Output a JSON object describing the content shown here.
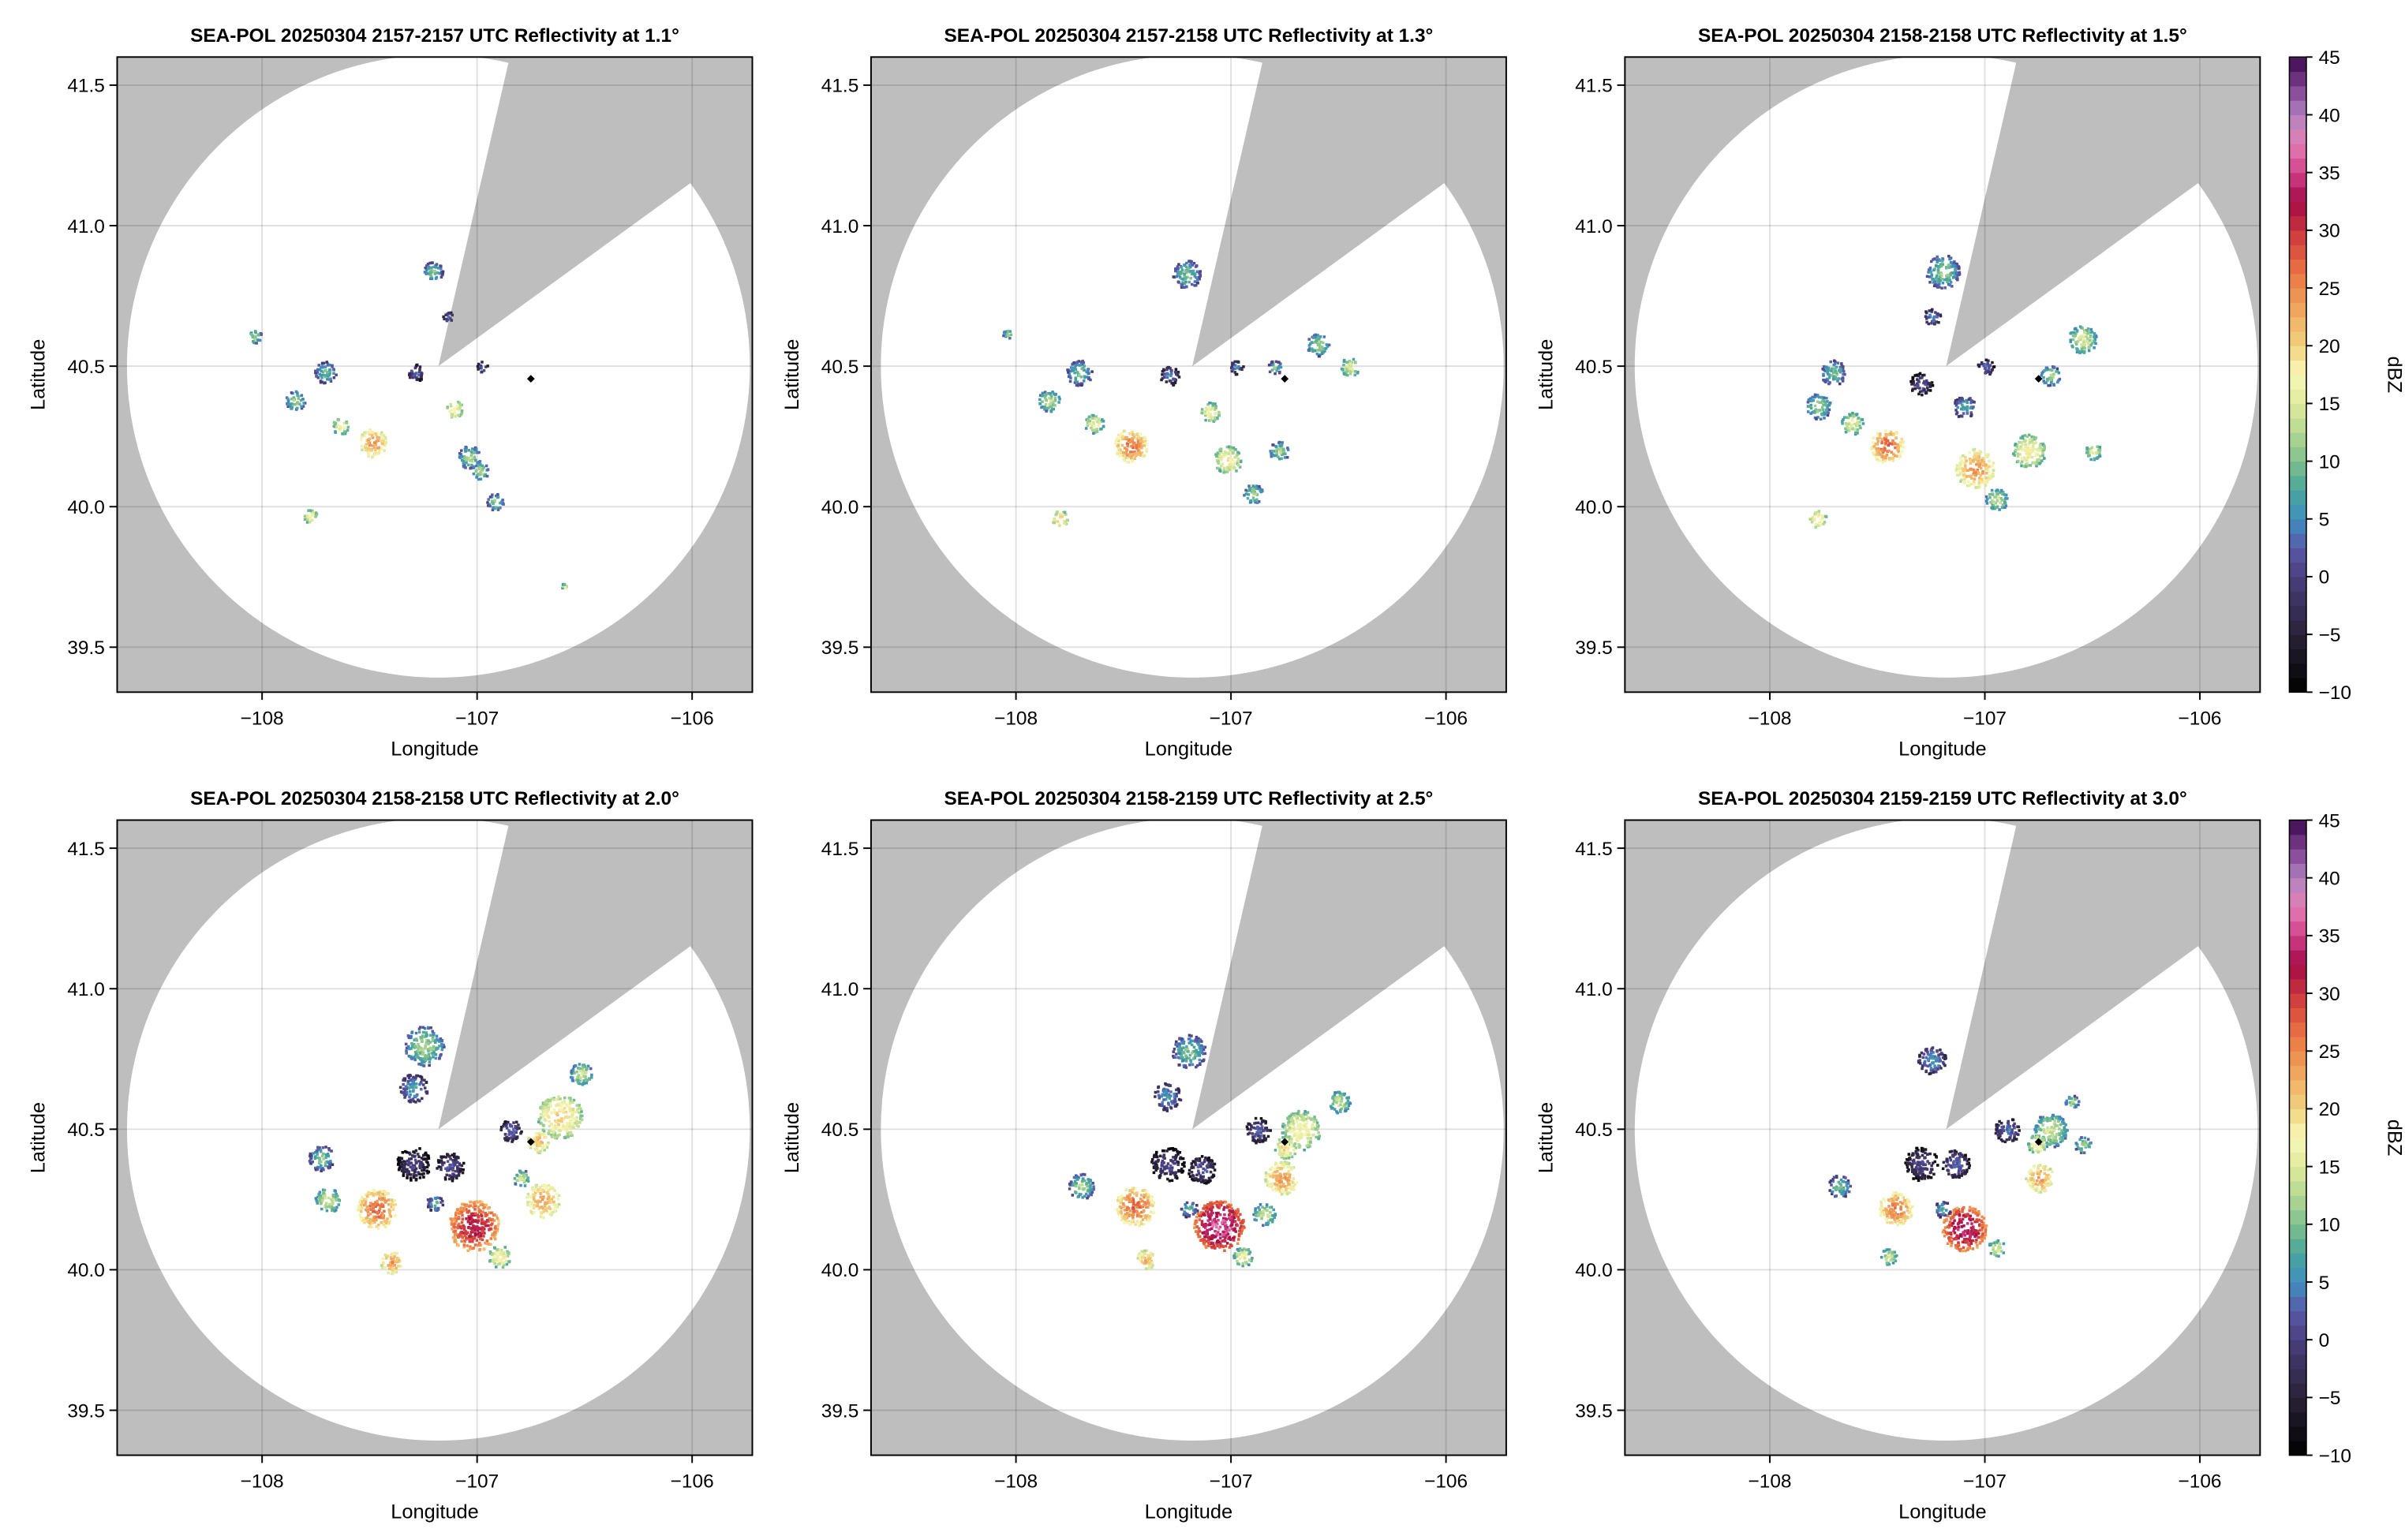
{
  "chart_data": {
    "type": "heatmap",
    "xlabel": "Longitude",
    "ylabel": "Latitude",
    "xlim": [
      -108.674,
      -105.72
    ],
    "ylim": [
      39.34,
      41.6
    ],
    "xticks": [
      -108,
      -107,
      -106
    ],
    "xtick_labels": [
      "−108",
      "−107",
      "−106"
    ],
    "yticks": [
      39.5,
      40.0,
      40.5,
      41.0,
      41.5
    ],
    "ytick_labels": [
      "39.5",
      "40.0",
      "40.5",
      "41.0",
      "41.5"
    ],
    "grid": true,
    "radar": {
      "lon": -107.18,
      "lat": 40.5,
      "range_km": 123,
      "blocked_sector_azimuth_deg": [
        13,
        54
      ],
      "outside_range_color": "#bebebe"
    },
    "marker": {
      "lon": -106.75,
      "lat": 40.455,
      "shape": "diamond",
      "color": "#000000"
    },
    "colorbar": {
      "label": "dBZ",
      "range": [
        -10,
        45
      ],
      "ticks": [
        -10,
        -5,
        0,
        5,
        10,
        15,
        20,
        25,
        30,
        35,
        40,
        45
      ],
      "tick_labels": [
        "−10",
        "−5",
        "0",
        "5",
        "10",
        "15",
        "20",
        "25",
        "30",
        "35",
        "40",
        "45"
      ],
      "colormap_stops": [
        [
          -10,
          "#000000"
        ],
        [
          -5,
          "#2a2238"
        ],
        [
          0,
          "#4a3f7e"
        ],
        [
          2.5,
          "#5a5aa8"
        ],
        [
          5,
          "#3f8fc0"
        ],
        [
          7.5,
          "#4aa59b"
        ],
        [
          10,
          "#7fc08d"
        ],
        [
          12.5,
          "#b5d892"
        ],
        [
          15,
          "#e0ea9d"
        ],
        [
          17.5,
          "#f8f8b8"
        ],
        [
          20,
          "#f2d37f"
        ],
        [
          22.5,
          "#efb066"
        ],
        [
          25,
          "#ee8b4c"
        ],
        [
          27.5,
          "#e2603f"
        ],
        [
          30,
          "#c9353f"
        ],
        [
          32.5,
          "#a30a47"
        ],
        [
          35,
          "#d0418b"
        ],
        [
          37.5,
          "#e37eb4"
        ],
        [
          40,
          "#b183c0"
        ],
        [
          42.5,
          "#7d3f8e"
        ],
        [
          45,
          "#3d0a4f"
        ]
      ],
      "shown_on_panels": [
        2,
        5
      ]
    },
    "panels": [
      {
        "title": "SEA-POL 20250304 2157-2157 UTC Reflectivity at 1.1°",
        "cells": [
          [
            -108.04,
            40.61,
            12,
            0.025
          ],
          [
            -107.71,
            40.48,
            9,
            0.04
          ],
          [
            -107.85,
            40.38,
            12,
            0.035
          ],
          [
            -107.49,
            40.23,
            24,
            0.05
          ],
          [
            -107.64,
            40.29,
            17,
            0.03
          ],
          [
            -107.78,
            39.97,
            18,
            0.025
          ],
          [
            -107.29,
            40.48,
            3,
            0.03
          ],
          [
            -107.21,
            40.84,
            10,
            0.035
          ],
          [
            -107.11,
            40.35,
            19,
            0.03
          ],
          [
            -107.04,
            40.18,
            12,
            0.04
          ],
          [
            -106.99,
            40.13,
            13,
            0.03
          ],
          [
            -106.92,
            40.02,
            11,
            0.03
          ],
          [
            -106.98,
            40.5,
            4,
            0.02
          ],
          [
            -107.14,
            40.68,
            4,
            0.02
          ],
          [
            -106.6,
            39.72,
            16,
            0.01
          ]
        ]
      },
      {
        "title": "SEA-POL 20250304 2157-2158 UTC Reflectivity at 1.3°",
        "cells": [
          [
            -108.04,
            40.62,
            11,
            0.02
          ],
          [
            -107.71,
            40.48,
            10,
            0.045
          ],
          [
            -107.85,
            40.38,
            13,
            0.04
          ],
          [
            -107.47,
            40.22,
            26,
            0.06
          ],
          [
            -107.64,
            40.3,
            16,
            0.035
          ],
          [
            -107.8,
            39.96,
            20,
            0.03
          ],
          [
            -107.29,
            40.47,
            3,
            0.035
          ],
          [
            -107.21,
            40.83,
            10,
            0.05
          ],
          [
            -107.1,
            40.34,
            17,
            0.035
          ],
          [
            -107.02,
            40.17,
            18,
            0.05
          ],
          [
            -106.9,
            40.05,
            12,
            0.035
          ],
          [
            -106.98,
            40.5,
            4,
            0.025
          ],
          [
            -106.6,
            40.58,
            12,
            0.04
          ],
          [
            -106.45,
            40.5,
            15,
            0.035
          ],
          [
            -106.78,
            40.2,
            12,
            0.035
          ],
          [
            -106.8,
            40.5,
            10,
            0.025
          ]
        ]
      },
      {
        "title": "SEA-POL 20250304 2158-2158 UTC Reflectivity at 1.5°",
        "cells": [
          [
            -107.71,
            40.48,
            10,
            0.045
          ],
          [
            -107.78,
            40.36,
            12,
            0.045
          ],
          [
            -107.46,
            40.22,
            27,
            0.06
          ],
          [
            -107.62,
            40.3,
            16,
            0.04
          ],
          [
            -107.78,
            39.96,
            20,
            0.03
          ],
          [
            -107.3,
            40.44,
            2,
            0.04
          ],
          [
            -107.2,
            40.84,
            11,
            0.06
          ],
          [
            -107.1,
            40.36,
            8,
            0.04
          ],
          [
            -107.05,
            40.14,
            24,
            0.07
          ],
          [
            -106.95,
            40.03,
            14,
            0.04
          ],
          [
            -106.8,
            40.2,
            18,
            0.06
          ],
          [
            -106.55,
            40.6,
            15,
            0.05
          ],
          [
            -106.5,
            40.2,
            15,
            0.03
          ],
          [
            -106.7,
            40.47,
            12,
            0.035
          ],
          [
            -107.0,
            40.5,
            3,
            0.03
          ],
          [
            -107.25,
            40.68,
            5,
            0.03
          ]
        ]
      },
      {
        "title": "SEA-POL 20250304 2158-2158 UTC Reflectivity at 2.0°",
        "cells": [
          [
            -107.02,
            40.16,
            32,
            0.09
          ],
          [
            -107.47,
            40.22,
            27,
            0.07
          ],
          [
            -107.4,
            40.03,
            24,
            0.04
          ],
          [
            -106.7,
            40.25,
            24,
            0.06
          ],
          [
            -106.62,
            40.55,
            20,
            0.08
          ],
          [
            -106.72,
            40.46,
            22,
            0.04
          ],
          [
            -107.25,
            40.8,
            12,
            0.07
          ],
          [
            -107.3,
            40.65,
            7,
            0.05
          ],
          [
            -107.3,
            40.38,
            0,
            0.06
          ],
          [
            -107.13,
            40.37,
            2,
            0.05
          ],
          [
            -107.73,
            40.4,
            10,
            0.045
          ],
          [
            -107.7,
            40.25,
            15,
            0.045
          ],
          [
            -106.52,
            40.7,
            14,
            0.04
          ],
          [
            -106.85,
            40.5,
            3,
            0.04
          ],
          [
            -106.9,
            40.05,
            18,
            0.04
          ],
          [
            -106.8,
            40.33,
            14,
            0.03
          ],
          [
            -107.2,
            40.24,
            8,
            0.03
          ]
        ]
      },
      {
        "title": "SEA-POL 20250304 2158-2159 UTC Reflectivity at 2.5°",
        "cells": [
          [
            -107.06,
            40.16,
            36,
            0.09
          ],
          [
            -107.45,
            40.23,
            27,
            0.07
          ],
          [
            -107.4,
            40.04,
            22,
            0.035
          ],
          [
            -106.77,
            40.33,
            24,
            0.06
          ],
          [
            -106.68,
            40.5,
            18,
            0.07
          ],
          [
            -106.75,
            40.44,
            20,
            0.04
          ],
          [
            -107.2,
            40.78,
            10,
            0.06
          ],
          [
            -107.3,
            40.62,
            6,
            0.05
          ],
          [
            -107.3,
            40.38,
            1,
            0.06
          ],
          [
            -107.14,
            40.36,
            2,
            0.05
          ],
          [
            -107.7,
            40.3,
            12,
            0.045
          ],
          [
            -106.5,
            40.6,
            14,
            0.04
          ],
          [
            -106.88,
            40.5,
            3,
            0.045
          ],
          [
            -106.95,
            40.05,
            16,
            0.035
          ],
          [
            -106.85,
            40.2,
            14,
            0.04
          ],
          [
            -107.2,
            40.22,
            8,
            0.03
          ]
        ]
      },
      {
        "title": "SEA-POL 20250304 2159-2159 UTC Reflectivity at 3.0°",
        "cells": [
          [
            -107.1,
            40.15,
            34,
            0.08
          ],
          [
            -107.42,
            40.22,
            26,
            0.06
          ],
          [
            -107.45,
            40.05,
            14,
            0.03
          ],
          [
            -106.75,
            40.33,
            24,
            0.05
          ],
          [
            -106.7,
            40.5,
            14,
            0.06
          ],
          [
            -106.76,
            40.45,
            18,
            0.035
          ],
          [
            -107.25,
            40.75,
            6,
            0.05
          ],
          [
            -107.3,
            40.38,
            1,
            0.06
          ],
          [
            -107.14,
            40.38,
            3,
            0.05
          ],
          [
            -107.68,
            40.3,
            10,
            0.04
          ],
          [
            -106.55,
            40.45,
            12,
            0.03
          ],
          [
            -106.9,
            40.5,
            4,
            0.045
          ],
          [
            -106.95,
            40.08,
            15,
            0.03
          ],
          [
            -107.2,
            40.22,
            8,
            0.03
          ],
          [
            -106.6,
            40.6,
            12,
            0.025
          ]
        ]
      }
    ]
  }
}
